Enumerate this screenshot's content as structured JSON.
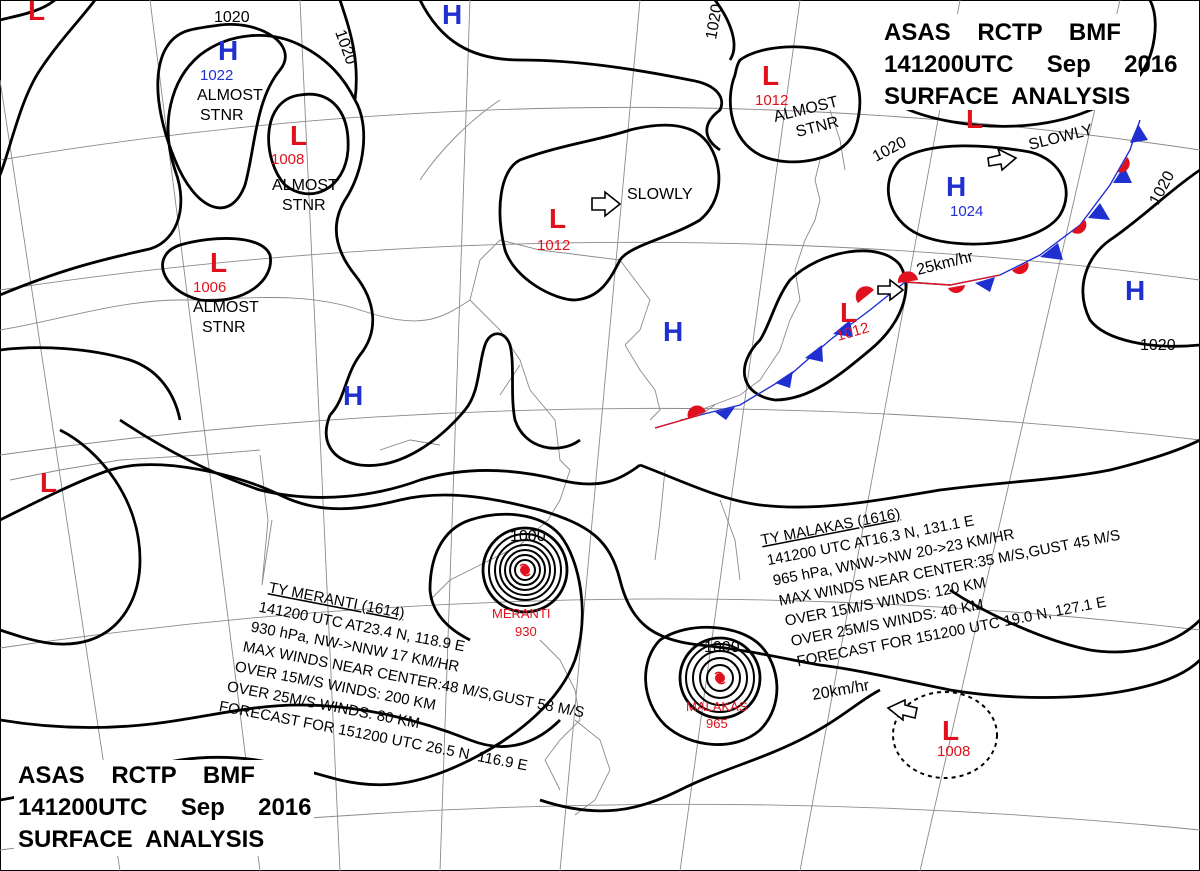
{
  "header": {
    "agency_line": "ASAS    RCTP    BMF",
    "time_line": "141200UTC     Sep     2016",
    "title_line": "SURFACE  ANALYSIS"
  },
  "footer": {
    "agency_line": "ASAS    RCTP    BMF",
    "time_line": "141200UTC     Sep     2016",
    "title_line": "SURFACE  ANALYSIS"
  },
  "colors": {
    "high": "#1f2fd0",
    "low": "#e0101c",
    "isobar": "#000000",
    "grid": "#8a8a8a"
  },
  "isobar_labels": [
    "1020",
    "1020",
    "1020",
    "1020",
    "1020",
    "1020",
    "1000",
    "1000"
  ],
  "highs": [
    {
      "symbol": "H",
      "value": "1022",
      "note": "ALMOST STNR"
    },
    {
      "symbol": "H",
      "value": ""
    },
    {
      "symbol": "H",
      "value": "1024",
      "note": "SLOWLY"
    },
    {
      "symbol": "H",
      "value": ""
    },
    {
      "symbol": "H",
      "value": ""
    },
    {
      "symbol": "H",
      "value": ""
    }
  ],
  "lows": [
    {
      "symbol": "L",
      "value": "1008",
      "note": "ALMOST STNR"
    },
    {
      "symbol": "L",
      "value": "1006",
      "note": "ALMOST STNR"
    },
    {
      "symbol": "L",
      "value": "1012",
      "note": "SLOWLY"
    },
    {
      "symbol": "L",
      "value": "1012",
      "note": "ALMOST STNR"
    },
    {
      "symbol": "L",
      "value": "1012",
      "note": "25km/hr"
    },
    {
      "symbol": "L",
      "value": "1008",
      "note": "20km/hr"
    },
    {
      "symbol": "L",
      "value": ""
    },
    {
      "symbol": "L",
      "value": ""
    },
    {
      "symbol": "L",
      "value": ""
    }
  ],
  "typhoons": [
    {
      "name": "MERANTI",
      "pressure": "930",
      "lines": [
        "TY  MERANTI  (1614)",
        "141200 UTC  AT23.4 N, 118.9 E",
        "930 hPa, NW->NNW  17 KM/HR",
        "MAX WINDS NEAR CENTER:48 M/S,GUST 58 M/S",
        "OVER 15M/S WINDS: 200 KM",
        "OVER 25M/S WINDS: 80 KM",
        "FORECAST FOR 151200 UTC 26.5 N, 116.9 E"
      ]
    },
    {
      "name": "MALAKAS",
      "pressure": "965",
      "lines": [
        "TY  MALAKAS  (1616)",
        "141200 UTC  AT16.3 N, 131.1 E",
        "965 hPa, WNW->NW  20->23 KM/HR",
        "MAX WINDS NEAR CENTER:35 M/S,GUST 45 M/S",
        "OVER 15M/S WINDS: 120 KM",
        "OVER 25M/S WINDS: 40 KM",
        "FORECAST FOR 151200 UTC 19.0 N, 127.1 E"
      ]
    }
  ]
}
